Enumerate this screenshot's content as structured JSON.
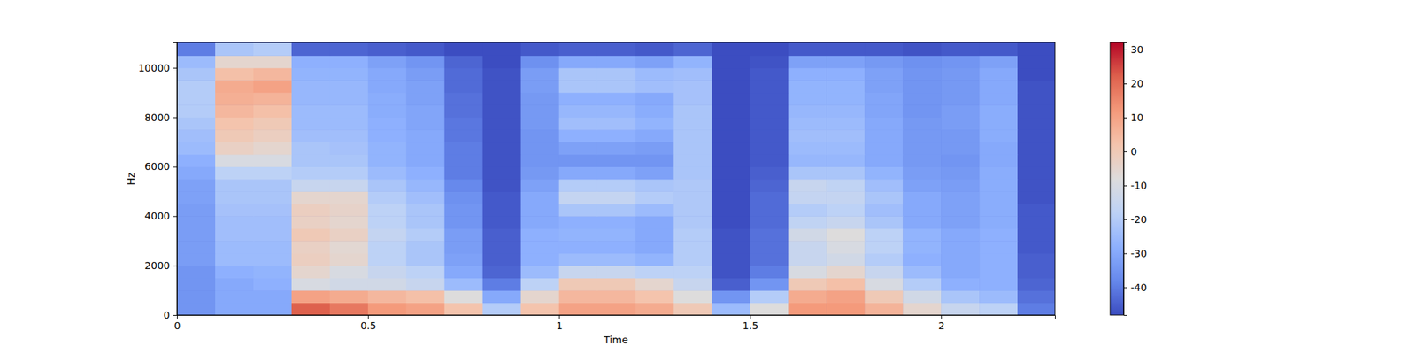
{
  "chart_data": {
    "type": "heatmap",
    "x_label": "Time",
    "y_label": "Hz",
    "xlim": [
      0,
      2.298
    ],
    "ylim": [
      0,
      11025
    ],
    "xticks": [
      0,
      0.5,
      1,
      1.5,
      2
    ],
    "yticks": [
      0,
      2000,
      4000,
      6000,
      8000,
      10000
    ],
    "color": "coolwarm",
    "clim": [
      -48.2,
      32.1
    ],
    "cticks": [
      -40,
      -30,
      -20,
      -10,
      0,
      10,
      20,
      30
    ],
    "x_bins": [
      0,
      0.1,
      0.2,
      0.3,
      0.4,
      0.5,
      0.6,
      0.7,
      0.8,
      0.9,
      1.0,
      1.1,
      1.2,
      1.3,
      1.4,
      1.5,
      1.6,
      1.7,
      1.8,
      1.9,
      2.0,
      2.1,
      2.2,
      2.3
    ],
    "y_bins": [
      0,
      500,
      1000,
      1500,
      2000,
      2500,
      3000,
      3500,
      4000,
      4500,
      5000,
      5500,
      6000,
      6500,
      7000,
      7500,
      8000,
      8500,
      9000,
      9500,
      10000,
      10500,
      11000
    ],
    "cells": [
      [
        -35,
        -30,
        -30,
        22,
        18,
        12,
        10,
        2,
        -20,
        2,
        10,
        10,
        8,
        0,
        -25,
        -8,
        12,
        12,
        6,
        -5,
        -15,
        -18,
        -40
      ],
      [
        -35,
        -30,
        -30,
        10,
        8,
        5,
        3,
        -8,
        -30,
        -5,
        5,
        5,
        2,
        -8,
        -35,
        -20,
        8,
        10,
        0,
        -12,
        -22,
        -25,
        -42
      ],
      [
        -35,
        -30,
        -28,
        -10,
        -12,
        -12,
        -15,
        -25,
        -40,
        -18,
        0,
        0,
        -5,
        -15,
        -45,
        -35,
        0,
        3,
        -10,
        -20,
        -28,
        -28,
        -44
      ],
      [
        -35,
        -28,
        -27,
        -5,
        -10,
        -15,
        -18,
        -30,
        -44,
        -25,
        -15,
        -15,
        -18,
        -18,
        -47,
        -40,
        -10,
        -5,
        -15,
        -25,
        -30,
        -28,
        -45
      ],
      [
        -33,
        -25,
        -25,
        -2,
        -5,
        -18,
        -22,
        -32,
        -45,
        -28,
        -25,
        -25,
        -27,
        -20,
        -47,
        -42,
        -15,
        -12,
        -20,
        -28,
        -30,
        -28,
        -45
      ],
      [
        -33,
        -25,
        -25,
        -3,
        -6,
        -18,
        -22,
        -33,
        -45,
        -28,
        -28,
        -28,
        -30,
        -20,
        -47,
        -42,
        -15,
        -10,
        -18,
        -27,
        -30,
        -28,
        -46
      ],
      [
        -33,
        -24,
        -24,
        0,
        -3,
        -16,
        -20,
        -33,
        -45,
        -28,
        -27,
        -27,
        -30,
        -20,
        -47,
        -42,
        -12,
        -8,
        -18,
        -27,
        -30,
        -28,
        -46
      ],
      [
        -33,
        -24,
        -24,
        -3,
        -5,
        -18,
        -22,
        -35,
        -46,
        -30,
        -28,
        -28,
        -30,
        -21,
        -48,
        -43,
        -17,
        -15,
        -22,
        -30,
        -32,
        -29,
        -46
      ],
      [
        -33,
        -23,
        -23,
        -2,
        -4,
        -18,
        -22,
        -35,
        -46,
        -30,
        -22,
        -22,
        -25,
        -21,
        -48,
        -43,
        -20,
        -18,
        -24,
        -30,
        -32,
        -29,
        -46
      ],
      [
        -32,
        -22,
        -22,
        -5,
        -5,
        -20,
        -24,
        -36,
        -46,
        -30,
        -16,
        -16,
        -20,
        -21,
        -48,
        -43,
        -16,
        -16,
        -22,
        -30,
        -32,
        -29,
        -47
      ],
      [
        -32,
        -22,
        -22,
        -15,
        -15,
        -22,
        -26,
        -38,
        -47,
        -32,
        -20,
        -20,
        -22,
        -21,
        -48,
        -44,
        -15,
        -17,
        -24,
        -32,
        -33,
        -29,
        -47
      ],
      [
        -30,
        -18,
        -18,
        -20,
        -20,
        -25,
        -28,
        -40,
        -47,
        -34,
        -30,
        -30,
        -32,
        -22,
        -48,
        -45,
        -22,
        -22,
        -27,
        -33,
        -34,
        -29,
        -47
      ],
      [
        -28,
        -10,
        -10,
        -22,
        -22,
        -27,
        -30,
        -40,
        -47,
        -35,
        -35,
        -35,
        -35,
        -22,
        -48,
        -46,
        -26,
        -26,
        -30,
        -34,
        -35,
        -30,
        -47
      ],
      [
        -25,
        -3,
        -5,
        -22,
        -23,
        -27,
        -30,
        -40,
        -47,
        -35,
        -32,
        -32,
        -33,
        -22,
        -48,
        -46,
        -25,
        -25,
        -30,
        -34,
        -34,
        -30,
        -47
      ],
      [
        -24,
        0,
        -2,
        -24,
        -24,
        -28,
        -30,
        -41,
        -47,
        -35,
        -28,
        -28,
        -30,
        -22,
        -48,
        -46,
        -24,
        -24,
        -30,
        -34,
        -34,
        -29,
        -47
      ],
      [
        -22,
        2,
        0,
        -25,
        -25,
        -28,
        -31,
        -41,
        -47,
        -34,
        -24,
        -24,
        -27,
        -22,
        -48,
        -46,
        -25,
        -25,
        -30,
        -34,
        -33,
        -29,
        -47
      ],
      [
        -20,
        5,
        3,
        -25,
        -25,
        -29,
        -31,
        -42,
        -47,
        -34,
        -26,
        -26,
        -29,
        -22,
        -48,
        -46,
        -26,
        -26,
        -31,
        -35,
        -33,
        -29,
        -47
      ],
      [
        -20,
        7,
        6,
        -26,
        -26,
        -29,
        -32,
        -42,
        -47,
        -34,
        -28,
        -28,
        -30,
        -23,
        -48,
        -46,
        -27,
        -27,
        -31,
        -35,
        -34,
        -30,
        -47
      ],
      [
        -20,
        8,
        10,
        -26,
        -26,
        -30,
        -32,
        -43,
        -47,
        -33,
        -22,
        -22,
        -24,
        -23,
        -48,
        -46,
        -27,
        -27,
        -32,
        -35,
        -34,
        -30,
        -47
      ],
      [
        -22,
        3,
        5,
        -27,
        -27,
        -30,
        -33,
        -43,
        -47,
        -33,
        -22,
        -22,
        -25,
        -24,
        -48,
        -46,
        -28,
        -28,
        -32,
        -35,
        -34,
        -30,
        -48
      ],
      [
        -25,
        -5,
        -5,
        -28,
        -28,
        -32,
        -35,
        -44,
        -48,
        -36,
        -30,
        -30,
        -32,
        -27,
        -48,
        -47,
        -32,
        -32,
        -34,
        -36,
        -35,
        -32,
        -48
      ],
      [
        -40,
        -22,
        -20,
        -44,
        -44,
        -45,
        -46,
        -48,
        -48,
        -46,
        -45,
        -45,
        -46,
        -44,
        -48,
        -48,
        -46,
        -46,
        -46,
        -47,
        -46,
        -46,
        -48
      ]
    ]
  }
}
